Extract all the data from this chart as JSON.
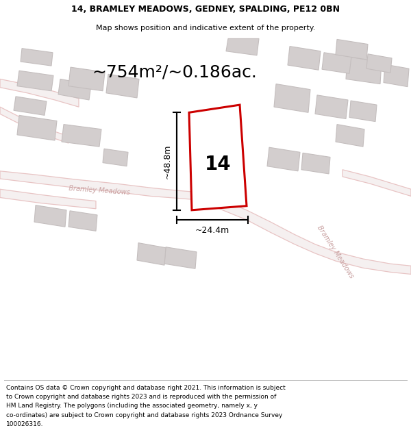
{
  "title_line1": "14, BRAMLEY MEADOWS, GEDNEY, SPALDING, PE12 0BN",
  "title_line2": "Map shows position and indicative extent of the property.",
  "area_text": "~754m²/~0.186ac.",
  "label_width": "~24.4m",
  "label_height": "~48.8m",
  "property_number": "14",
  "footer_lines": [
    "Contains OS data © Crown copyright and database right 2021. This information is subject",
    "to Crown copyright and database rights 2023 and is reproduced with the permission of",
    "HM Land Registry. The polygons (including the associated geometry, namely x, y",
    "co-ordinates) are subject to Crown copyright and database rights 2023 Ordnance Survey",
    "100026316."
  ],
  "map_bg": "#eeebeb",
  "road_color": "#e8c4c4",
  "road_fill": "#f5f0f0",
  "building_color": "#d3cece",
  "building_edge": "#c4bebe",
  "property_line_color": "#cc0000",
  "property_fill": "#ffffff",
  "street_label_color": "#c8a0a0",
  "title_fontsize": 9,
  "subtitle_fontsize": 8,
  "area_fontsize": 18
}
